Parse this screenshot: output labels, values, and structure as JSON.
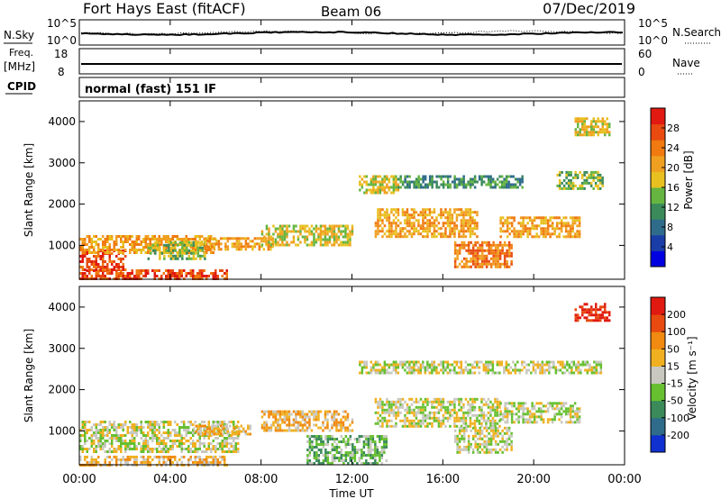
{
  "header": {
    "title": "Fort Hays East (fitACF)",
    "beam": "Beam 06",
    "date": "07/Dec/2019"
  },
  "panels": {
    "nsky": {
      "left_label": "N.Sky",
      "right_label": "N.Search",
      "ytick_top": "10^5",
      "ytick_bottom": "10^0",
      "ytick_top_right": "10^5",
      "ytick_bottom_right": "10^0"
    },
    "freq": {
      "left_label_1": "Freq.",
      "left_label_2": "[MHz]",
      "right_label": "Nave",
      "yticks_left": [
        "18",
        "8"
      ],
      "yticks_right": [
        "60",
        "0"
      ]
    },
    "cpid": {
      "left_label": "CPID",
      "text": "normal (fast) 151 IF"
    }
  },
  "power_panel": {
    "ylabel": "Slant Range [km]",
    "colorbar_label": "Power [dB]",
    "colorbar_ticks": [
      "28",
      "24",
      "20",
      "16",
      "12",
      "8",
      "4"
    ],
    "colors": [
      "#0000e0",
      "#1a3da8",
      "#2f6b8a",
      "#3a8a5a",
      "#66b540",
      "#e8c020",
      "#f0a020",
      "#f07a10",
      "#e84a10",
      "#e01a10"
    ]
  },
  "velocity_panel": {
    "ylabel": "Slant Range [km]",
    "colorbar_label": "Velocity [m s⁻¹]",
    "colorbar_ticks": [
      "200",
      "100",
      "50",
      "15",
      "-15",
      "-50",
      "-100",
      "-200"
    ],
    "colors": [
      "#1030d0",
      "#2f6b8a",
      "#3a8a5a",
      "#66c030",
      "#c8c8c0",
      "#f0b020",
      "#f08a10",
      "#e84a10",
      "#e01a10"
    ]
  },
  "xaxis": {
    "label": "Time UT",
    "ticks": [
      "00:00",
      "04:00",
      "08:00",
      "12:00",
      "16:00",
      "20:00",
      "00:00"
    ]
  },
  "chart_data": [
    {
      "type": "heatmap",
      "title": "Power [dB]",
      "xlabel": "Time UT",
      "ylabel": "Slant Range [km]",
      "xlim": [
        0,
        24
      ],
      "ylim": [
        180,
        4500
      ],
      "yticks": [
        1000,
        2000,
        3000,
        4000
      ],
      "clim": [
        0,
        30
      ],
      "regions": [
        {
          "t0": 0.0,
          "t1": 6.5,
          "r0": 180,
          "r1": 420,
          "value": 24
        },
        {
          "t0": 0.0,
          "t1": 2.0,
          "r0": 400,
          "r1": 900,
          "value": 26
        },
        {
          "t0": 0.0,
          "t1": 6.0,
          "r0": 850,
          "r1": 1250,
          "value": 18
        },
        {
          "t0": 3.0,
          "t1": 5.5,
          "r0": 700,
          "r1": 1100,
          "value": 14
        },
        {
          "t0": 5.5,
          "t1": 8.5,
          "r0": 900,
          "r1": 1200,
          "value": 18
        },
        {
          "t0": 8.0,
          "t1": 12.0,
          "r0": 1000,
          "r1": 1500,
          "value": 16
        },
        {
          "t0": 12.3,
          "t1": 14.0,
          "r0": 2300,
          "r1": 2700,
          "value": 15
        },
        {
          "t0": 13.0,
          "t1": 17.5,
          "r0": 1200,
          "r1": 1900,
          "value": 20
        },
        {
          "t0": 14.0,
          "t1": 19.5,
          "r0": 2400,
          "r1": 2700,
          "value": 10
        },
        {
          "t0": 16.5,
          "t1": 19.0,
          "r0": 500,
          "r1": 1100,
          "value": 22
        },
        {
          "t0": 18.5,
          "t1": 22.0,
          "r0": 1200,
          "r1": 1700,
          "value": 18
        },
        {
          "t0": 21.0,
          "t1": 23.0,
          "r0": 2400,
          "r1": 2800,
          "value": 12
        },
        {
          "t0": 21.8,
          "t1": 23.3,
          "r0": 3700,
          "r1": 4100,
          "value": 16
        }
      ]
    },
    {
      "type": "heatmap",
      "title": "Velocity [m s⁻¹]",
      "xlabel": "Time UT",
      "ylabel": "Slant Range [km]",
      "xlim": [
        0,
        24
      ],
      "ylim": [
        180,
        4500
      ],
      "yticks": [
        1000,
        2000,
        3000,
        4000
      ],
      "clim": [
        -200,
        200
      ],
      "regions": [
        {
          "t0": 0.0,
          "t1": 6.5,
          "r0": 180,
          "r1": 400,
          "value": 30
        },
        {
          "t0": 0.0,
          "t1": 7.0,
          "r0": 500,
          "r1": 1250,
          "value": 0
        },
        {
          "t0": 5.0,
          "t1": 7.5,
          "r0": 900,
          "r1": 1150,
          "value": 40
        },
        {
          "t0": 8.0,
          "t1": 12.0,
          "r0": 1000,
          "r1": 1500,
          "value": 30
        },
        {
          "t0": 10.0,
          "t1": 13.5,
          "r0": 180,
          "r1": 900,
          "value": -40
        },
        {
          "t0": 13.0,
          "t1": 18.5,
          "r0": 1100,
          "r1": 1800,
          "value": 0
        },
        {
          "t0": 12.3,
          "t1": 23.0,
          "r0": 2400,
          "r1": 2700,
          "value": 0
        },
        {
          "t0": 16.5,
          "t1": 19.0,
          "r0": 500,
          "r1": 1100,
          "value": 0
        },
        {
          "t0": 18.5,
          "t1": 22.0,
          "r0": 1200,
          "r1": 1700,
          "value": 0
        },
        {
          "t0": 21.8,
          "t1": 23.3,
          "r0": 3700,
          "r1": 4100,
          "value": 220
        }
      ]
    }
  ]
}
